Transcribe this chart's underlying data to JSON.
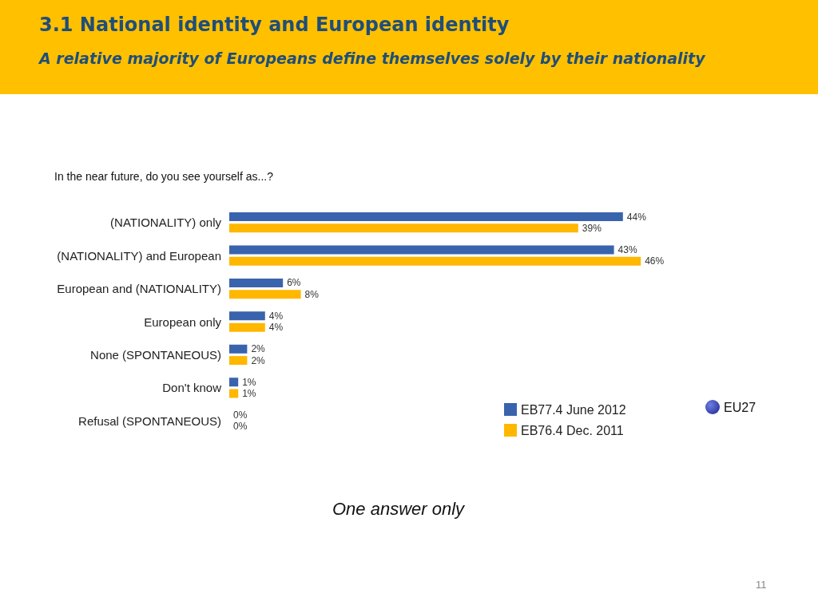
{
  "chart_data": {
    "type": "bar",
    "orientation": "horizontal",
    "title": "3.1 National identity and European identity",
    "subtitle": "A relative majority of Europeans define themselves solely by their nationality",
    "categories": [
      "(NATIONALITY) only",
      "(NATIONALITY) and European",
      "European and (NATIONALITY)",
      "European only",
      "None (SPONTANEOUS)",
      "Don't know",
      "Refusal (SPONTANEOUS)"
    ],
    "series": [
      {
        "name": "EB77.4 June 2012",
        "color": "#3a63ad",
        "values": [
          44,
          43,
          6,
          4,
          2,
          1,
          0
        ],
        "value_labels": [
          "44%",
          "43%",
          "6%",
          "4%",
          "2%",
          "1%",
          "0%"
        ]
      },
      {
        "name": "EB76.4 Dec. 2011",
        "color": "#ffb700",
        "values": [
          39,
          46,
          8,
          4,
          2,
          1,
          0
        ],
        "value_labels": [
          "39%",
          "46%",
          "8%",
          "4%",
          "2%",
          "1%",
          "0%"
        ]
      }
    ],
    "legend": "bottom right",
    "annotations": [
      "In the near future, do you see yourself as...?",
      "EU27",
      "One answer only",
      "11"
    ]
  }
}
